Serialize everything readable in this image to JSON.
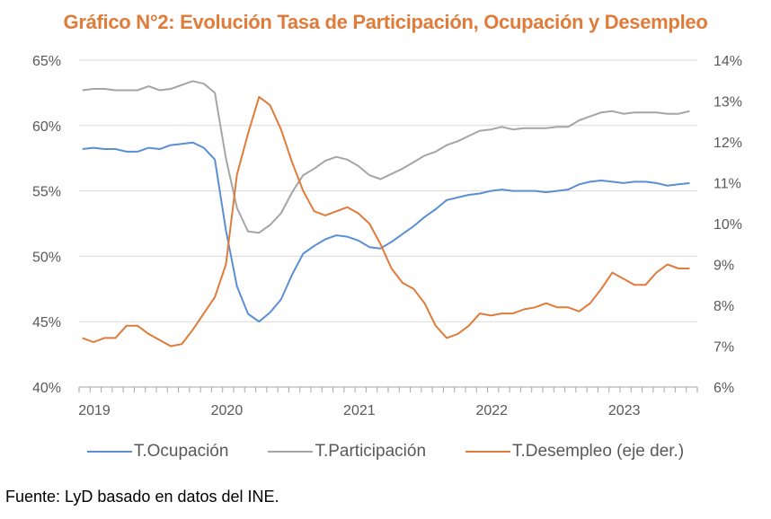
{
  "chart_data": {
    "type": "line",
    "title": "Gráfico N°2: Evolución Tasa de Participación, Ocupación y Desempleo",
    "xlabel": "",
    "ylabel": "",
    "y2label": "",
    "x_tick_labels": [
      "2019",
      "2020",
      "2021",
      "2022",
      "2023"
    ],
    "x_start": "2019-01",
    "x_frequency": "monthly",
    "num_points": 56,
    "ylim": [
      40,
      65
    ],
    "y_ticks": [
      "40%",
      "45%",
      "50%",
      "55%",
      "60%",
      "65%"
    ],
    "y2lim": [
      6,
      14
    ],
    "y2_ticks": [
      "6%",
      "7%",
      "8%",
      "9%",
      "10%",
      "11%",
      "12%",
      "13%",
      "14%"
    ],
    "grid": true,
    "legend_position": "bottom",
    "series": [
      {
        "name": "T.Ocupación",
        "axis": "left",
        "color": "#5b8fd4",
        "values": [
          58.2,
          58.3,
          58.2,
          58.2,
          58.0,
          58.0,
          58.3,
          58.2,
          58.5,
          58.6,
          58.7,
          58.3,
          57.4,
          52.0,
          47.7,
          45.6,
          45.0,
          45.7,
          46.7,
          48.6,
          50.2,
          50.8,
          51.3,
          51.6,
          51.5,
          51.2,
          50.7,
          50.6,
          51.1,
          51.7,
          52.3,
          53.0,
          53.6,
          54.3,
          54.5,
          54.7,
          54.8,
          55.0,
          55.1,
          55.0,
          55.0,
          55.0,
          54.9,
          55.0,
          55.1,
          55.5,
          55.7,
          55.8,
          55.7,
          55.6,
          55.7,
          55.7,
          55.6,
          55.4,
          55.5,
          55.6
        ]
      },
      {
        "name": "T.Participación",
        "axis": "left",
        "color": "#a5a5a5",
        "values": [
          62.7,
          62.8,
          62.8,
          62.7,
          62.7,
          62.7,
          63.0,
          62.7,
          62.8,
          63.1,
          63.4,
          63.2,
          62.5,
          57.5,
          53.7,
          51.9,
          51.8,
          52.4,
          53.3,
          54.9,
          56.2,
          56.7,
          57.3,
          57.6,
          57.4,
          56.9,
          56.2,
          55.9,
          56.3,
          56.7,
          57.2,
          57.7,
          58.0,
          58.5,
          58.8,
          59.2,
          59.6,
          59.7,
          59.9,
          59.7,
          59.8,
          59.8,
          59.8,
          59.9,
          59.9,
          60.4,
          60.7,
          61.0,
          61.1,
          60.9,
          61.0,
          61.0,
          61.0,
          60.9,
          60.9,
          61.1
        ]
      },
      {
        "name": "T.Desempleo (eje der.)",
        "axis": "right",
        "color": "#e07b39",
        "values": [
          7.2,
          7.1,
          7.2,
          7.2,
          7.5,
          7.5,
          7.3,
          7.15,
          7.0,
          7.05,
          7.4,
          7.8,
          8.2,
          9.0,
          11.2,
          12.2,
          13.1,
          12.9,
          12.3,
          11.5,
          10.8,
          10.3,
          10.2,
          10.3,
          10.4,
          10.25,
          10.0,
          9.5,
          8.9,
          8.55,
          8.4,
          8.05,
          7.5,
          7.2,
          7.3,
          7.5,
          7.8,
          7.75,
          7.8,
          7.8,
          7.9,
          7.95,
          8.05,
          7.95,
          7.95,
          7.85,
          8.05,
          8.4,
          8.8,
          8.65,
          8.5,
          8.5,
          8.8,
          9.0,
          8.9,
          8.9
        ]
      }
    ],
    "source": "Fuente: LyD basado en datos del INE."
  }
}
